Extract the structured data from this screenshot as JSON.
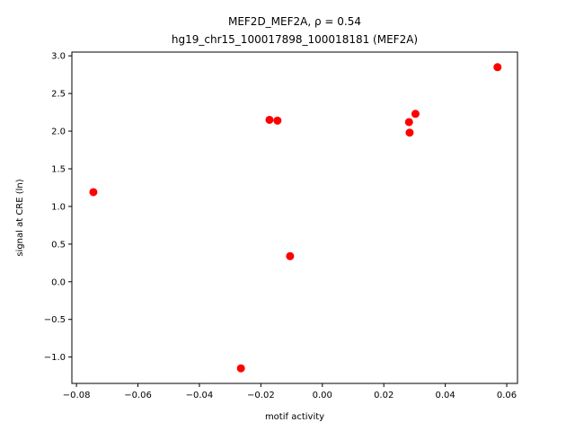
{
  "chart_data": {
    "type": "scatter",
    "title_line1": "MEF2D_MEF2A, ρ = 0.54",
    "title_line2": "hg19_chr15_100017898_100018181 (MEF2A)",
    "xlabel": "motif activity",
    "ylabel": "signal at CRE (ln)",
    "xlim": [
      -0.0815,
      0.0635
    ],
    "ylim": [
      -1.35,
      3.05
    ],
    "xticks": [
      -0.08,
      -0.06,
      -0.04,
      -0.02,
      0.0,
      0.02,
      0.04,
      0.06
    ],
    "xtick_labels": [
      "−0.08",
      "−0.06",
      "−0.04",
      "−0.02",
      "0.00",
      "0.02",
      "0.04",
      "0.06"
    ],
    "yticks": [
      -1.0,
      -0.5,
      0.0,
      0.5,
      1.0,
      1.5,
      2.0,
      2.5,
      3.0
    ],
    "ytick_labels": [
      "−1.0",
      "−0.5",
      "0.0",
      "0.5",
      "1.0",
      "1.5",
      "2.0",
      "2.5",
      "3.0"
    ],
    "grid": false,
    "marker_color": "#ff0000",
    "points": [
      {
        "x": -0.0745,
        "y": 1.19
      },
      {
        "x": -0.0265,
        "y": -1.15
      },
      {
        "x": -0.0172,
        "y": 2.15
      },
      {
        "x": -0.0146,
        "y": 2.14
      },
      {
        "x": -0.0105,
        "y": 0.34
      },
      {
        "x": 0.0282,
        "y": 2.12
      },
      {
        "x": 0.0284,
        "y": 1.98
      },
      {
        "x": 0.0303,
        "y": 2.23
      },
      {
        "x": 0.057,
        "y": 2.85
      }
    ]
  }
}
